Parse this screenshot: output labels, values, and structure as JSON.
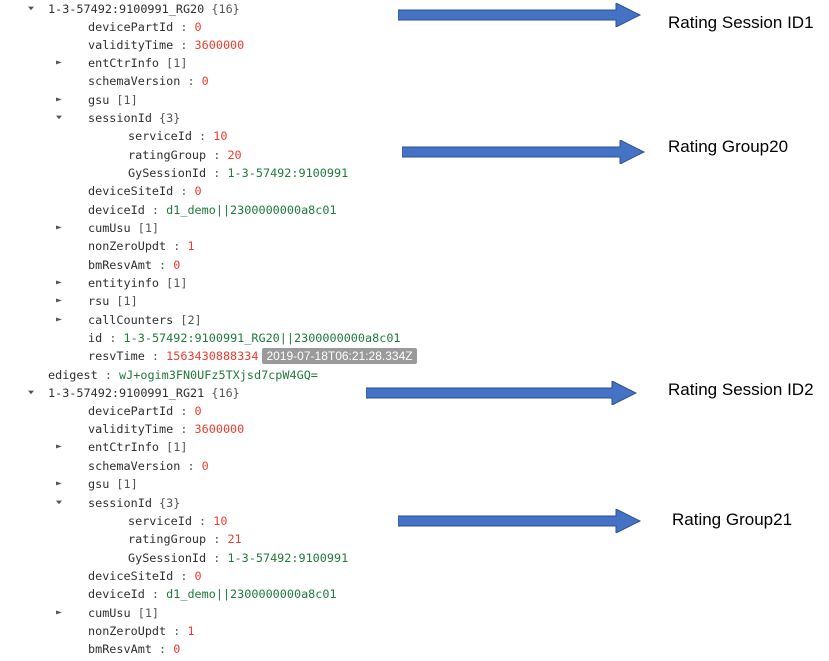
{
  "tree": [
    {
      "toggle": "expanded",
      "key": "1-3-57492:9100991_RG20",
      "meta": "{16}"
    },
    {
      "key": "devicePartId",
      "sep": " : ",
      "value": "0",
      "vtype": "num"
    },
    {
      "key": "validityTime",
      "sep": " : ",
      "value": "3600000",
      "vtype": "num"
    },
    {
      "toggle": "collapsed",
      "key": "entCtrInfo",
      "meta": "[1]"
    },
    {
      "key": "schemaVersion",
      "sep": " : ",
      "value": "0",
      "vtype": "num"
    },
    {
      "toggle": "collapsed",
      "key": "gsu",
      "meta": " [1]"
    },
    {
      "toggle": "expanded",
      "key": "sessionId",
      "meta": "{3}"
    },
    {
      "key": "serviceId",
      "sep": " : ",
      "value": "10",
      "vtype": "num"
    },
    {
      "key": "ratingGroup",
      "sep": " : ",
      "value": "20",
      "vtype": "num"
    },
    {
      "key": "GySessionId",
      "sep": " : ",
      "value": "1-3-57492:9100991",
      "vtype": "str"
    },
    {
      "key": "deviceSiteId",
      "sep": " : ",
      "value": "0",
      "vtype": "num"
    },
    {
      "key": "deviceId",
      "sep": " : ",
      "value": "d1_demo||2300000000a8c01",
      "vtype": "str"
    },
    {
      "toggle": "collapsed",
      "key": "cumUsu",
      "meta": "[1]"
    },
    {
      "key": "nonZeroUpdt",
      "sep": " : ",
      "value": "1",
      "vtype": "num"
    },
    {
      "key": "bmResvAmt",
      "sep": " : ",
      "value": "0",
      "vtype": "num"
    },
    {
      "toggle": "collapsed",
      "key": "entityinfo",
      "meta": "[1]"
    },
    {
      "toggle": "collapsed",
      "key": "rsu",
      "meta": " [1]"
    },
    {
      "toggle": "collapsed",
      "key": "callCounters",
      "meta": "[2]"
    },
    {
      "key": "id",
      "sep": "   : ",
      "value": "1-3-57492:9100991_RG20||2300000000a8c01",
      "vtype": "str"
    },
    {
      "key": "resvTime",
      "sep": " : ",
      "value": "1563430888334",
      "vtype": "num",
      "badge": "2019-07-18T06:21:28.334Z"
    },
    {
      "key": "edigest",
      "sep": " : ",
      "value": "wJ+ogim3FN0UFz5TXjsd7cpW4GQ=",
      "vtype": "str"
    },
    {
      "toggle": "expanded",
      "key": "1-3-57492:9100991_RG21",
      "meta": "{16}"
    },
    {
      "key": "devicePartId",
      "sep": " : ",
      "value": "0",
      "vtype": "num"
    },
    {
      "key": "validityTime",
      "sep": " : ",
      "value": "3600000",
      "vtype": "num"
    },
    {
      "toggle": "collapsed",
      "key": "entCtrInfo",
      "meta": "[1]"
    },
    {
      "key": "schemaVersion",
      "sep": " : ",
      "value": "0",
      "vtype": "num"
    },
    {
      "toggle": "collapsed",
      "key": "gsu",
      "meta": " [1]"
    },
    {
      "toggle": "expanded",
      "key": "sessionId",
      "meta": "{3}"
    },
    {
      "key": "serviceId",
      "sep": " : ",
      "value": "10",
      "vtype": "num"
    },
    {
      "key": "ratingGroup",
      "sep": " : ",
      "value": "21",
      "vtype": "num"
    },
    {
      "key": "GySessionId",
      "sep": " : ",
      "value": "1-3-57492:9100991",
      "vtype": "str"
    },
    {
      "key": "deviceSiteId",
      "sep": " : ",
      "value": "0",
      "vtype": "num"
    },
    {
      "key": "deviceId",
      "sep": " : ",
      "value": "d1_demo||2300000000a8c01",
      "vtype": "str"
    },
    {
      "toggle": "collapsed",
      "key": "cumUsu",
      "meta": "[1]"
    },
    {
      "key": "nonZeroUpdt",
      "sep": " : ",
      "value": "1",
      "vtype": "num"
    },
    {
      "key": "bmResvAmt",
      "sep": " : ",
      "value": "0",
      "vtype": "num"
    }
  ],
  "annotations": [
    {
      "label": "Rating Session ID1"
    },
    {
      "label": "Rating Group20"
    },
    {
      "label": "Rating Session ID2"
    },
    {
      "label": "Rating Group21"
    }
  ],
  "colors": {
    "number": "#ee3b2f",
    "string": "#1f7a3a",
    "arrow": "#4472c4",
    "arrow_stroke": "#2f528f"
  }
}
